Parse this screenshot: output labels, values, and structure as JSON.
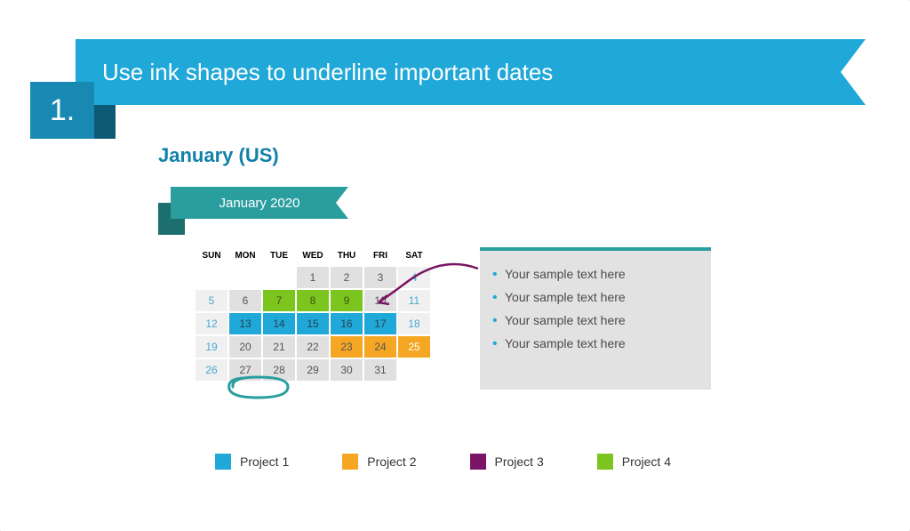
{
  "header": {
    "number": "1.",
    "title": "Use ink shapes to underline important dates"
  },
  "subtitle": "January (US)",
  "calendar": {
    "ribbon": "January 2020",
    "headers": [
      "SUN",
      "MON",
      "TUE",
      "WED",
      "THU",
      "FRI",
      "SAT"
    ],
    "weeks": [
      [
        {
          "v": "",
          "c": "none"
        },
        {
          "v": "",
          "c": "none"
        },
        {
          "v": "",
          "c": "none"
        },
        {
          "v": "1",
          "c": "gray"
        },
        {
          "v": "2",
          "c": "gray"
        },
        {
          "v": "3",
          "c": "gray"
        },
        {
          "v": "4",
          "c": "weekend"
        }
      ],
      [
        {
          "v": "5",
          "c": "weekend"
        },
        {
          "v": "6",
          "c": "gray"
        },
        {
          "v": "7",
          "c": "p4"
        },
        {
          "v": "8",
          "c": "p4"
        },
        {
          "v": "9",
          "c": "p4"
        },
        {
          "v": "10",
          "c": "gray"
        },
        {
          "v": "11",
          "c": "weekend"
        }
      ],
      [
        {
          "v": "12",
          "c": "weekend"
        },
        {
          "v": "13",
          "c": "p1"
        },
        {
          "v": "14",
          "c": "p1"
        },
        {
          "v": "15",
          "c": "p1"
        },
        {
          "v": "16",
          "c": "p1"
        },
        {
          "v": "17",
          "c": "p1"
        },
        {
          "v": "18",
          "c": "weekend"
        }
      ],
      [
        {
          "v": "19",
          "c": "weekend"
        },
        {
          "v": "20",
          "c": "gray"
        },
        {
          "v": "21",
          "c": "gray"
        },
        {
          "v": "22",
          "c": "gray"
        },
        {
          "v": "23",
          "c": "p2"
        },
        {
          "v": "24",
          "c": "p2"
        },
        {
          "v": "25",
          "c": "p2w"
        }
      ],
      [
        {
          "v": "26",
          "c": "weekend"
        },
        {
          "v": "27",
          "c": "gray"
        },
        {
          "v": "28",
          "c": "gray"
        },
        {
          "v": "29",
          "c": "gray"
        },
        {
          "v": "30",
          "c": "gray"
        },
        {
          "v": "31",
          "c": "gray"
        },
        {
          "v": "",
          "c": "none"
        }
      ]
    ]
  },
  "colors": {
    "none": {
      "bg": "#ffffff",
      "fg": "#ffffff"
    },
    "gray": {
      "bg": "#e0e0e0",
      "fg": "#555555"
    },
    "weekend": {
      "bg": "#f0f0f0",
      "fg": "#4aa8d0"
    },
    "p1": {
      "bg": "#1fa8d8",
      "fg": "#2b4050"
    },
    "p2": {
      "bg": "#f5a623",
      "fg": "#555555"
    },
    "p2w": {
      "bg": "#f5a623",
      "fg": "#ffffff"
    },
    "p4": {
      "bg": "#7cc51f",
      "fg": "#3a5510"
    }
  },
  "textbox": {
    "items": [
      "Your sample text here",
      "Your sample text here",
      "Your sample text here",
      "Your sample text here"
    ]
  },
  "legend": [
    {
      "label": "Project 1",
      "color": "#1fa8d8"
    },
    {
      "label": "Project 2",
      "color": "#f5a623"
    },
    {
      "label": "Project 3",
      "color": "#7b1464"
    },
    {
      "label": "Project 4",
      "color": "#7cc51f"
    }
  ],
  "ink": {
    "circle_color": "#2a9e9e",
    "arrow_color": "#7b1464"
  }
}
